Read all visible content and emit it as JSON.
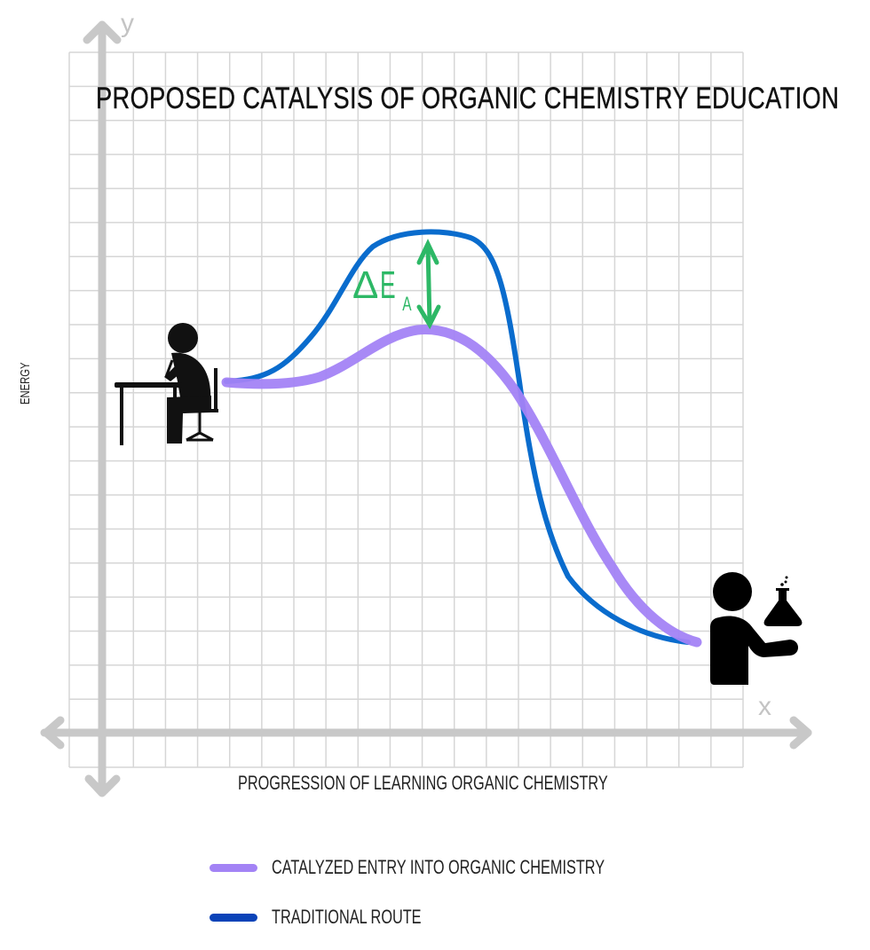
{
  "chart_data": {
    "type": "line",
    "title": "Proposed Catalysis of Organic Chemistry Education",
    "xlabel": "Progression of Learning Organic Chemistry",
    "ylabel": "Energy",
    "x_axis_letter": "x",
    "y_axis_letter": "y",
    "grid": true,
    "legend_position": "bottom",
    "annotation": {
      "text": "ΔE",
      "subscript": "A",
      "meaning": "difference in activation energy between routes",
      "color": "#2db866"
    },
    "x": [
      0,
      1,
      2,
      3,
      4,
      5,
      6,
      7,
      8,
      9,
      10,
      11,
      12,
      13,
      14
    ],
    "series": [
      {
        "name": "Catalyzed Entry into Organic Chemistry",
        "color": "#a383f5",
        "values": [
          5.0,
          5.0,
          5.1,
          5.5,
          6.1,
          6.5,
          6.6,
          6.3,
          5.4,
          4.1,
          2.8,
          1.7,
          0.9,
          0.4,
          0.3
        ]
      },
      {
        "name": "Traditional Route",
        "color": "#0a6ccd",
        "values": [
          5.0,
          5.2,
          5.9,
          7.0,
          8.5,
          9.3,
          9.5,
          9.3,
          8.0,
          4.5,
          1.9,
          1.1,
          0.6,
          0.3,
          0.3
        ]
      }
    ],
    "start_icon": "student-at-desk",
    "end_icon": "chemist-with-flask"
  },
  "labels": {
    "title": "Proposed Catalysis of Organic Chemistry Education",
    "ylabel": "Energy",
    "xlabel": "Progression of Learning Organic Chemistry",
    "x_letter": "x",
    "y_letter": "y",
    "delta": "Δ",
    "delta_e": "E",
    "delta_sub": "A"
  },
  "legend": [
    {
      "label": "Catalyzed Entry into Organic Chemistry",
      "color": "#a383f5"
    },
    {
      "label": "Traditional Route",
      "color": "#0a43b8"
    }
  ]
}
